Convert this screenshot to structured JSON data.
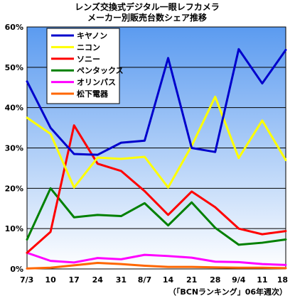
{
  "chart_data": {
    "type": "line",
    "title": [
      "レンズ交換式デジタル一眼レフカメラ",
      "メーカー別販売台数シェア推移"
    ],
    "xlabel": "",
    "ylabel": "",
    "categories": [
      "7/3",
      "10",
      "17",
      "24",
      "31",
      "8/7",
      "14",
      "21",
      "28",
      "9/4",
      "11",
      "18"
    ],
    "y_ticks": [
      "0%",
      "10%",
      "20%",
      "30%",
      "40%",
      "50%",
      "60%"
    ],
    "ylim": [
      0,
      60
    ],
    "grid": true,
    "legend_position": "top-left",
    "footnote": "（「BCNランキング」06年週次）",
    "background": {
      "top": "#5b9bf0",
      "bottom": "#ffffff"
    },
    "series": [
      {
        "name": "キヤノン",
        "color": "#0000cc",
        "values": [
          46.5,
          35.0,
          28.5,
          28.3,
          31.3,
          31.8,
          52.3,
          30.0,
          29.0,
          54.5,
          46.0,
          54.3
        ]
      },
      {
        "name": "ニコン",
        "color": "#ffff00",
        "values": [
          37.5,
          33.5,
          20.2,
          27.6,
          27.3,
          27.8,
          20.2,
          30.5,
          42.7,
          27.5,
          36.8,
          27.0
        ]
      },
      {
        "name": "ソニー",
        "color": "#ff0000",
        "values": [
          4.0,
          9.2,
          35.6,
          26.1,
          24.3,
          19.3,
          13.4,
          19.2,
          15.3,
          10.0,
          8.6,
          9.4
        ]
      },
      {
        "name": "ペンタックス",
        "color": "#008000",
        "values": [
          7.3,
          20.0,
          12.8,
          13.4,
          13.1,
          16.3,
          10.8,
          16.5,
          10.2,
          6.0,
          6.5,
          7.3
        ]
      },
      {
        "name": "オリンパス",
        "color": "#ff00ff",
        "values": [
          4.0,
          2.0,
          1.6,
          2.7,
          2.4,
          3.5,
          3.2,
          2.8,
          1.8,
          1.7,
          1.2,
          1.0
        ]
      },
      {
        "name": "松下電器",
        "color": "#ff6600",
        "values": [
          0.1,
          0.3,
          0.9,
          1.5,
          1.2,
          0.8,
          0.5,
          0.5,
          0.4,
          0.3,
          0.3,
          0.2
        ]
      }
    ]
  }
}
